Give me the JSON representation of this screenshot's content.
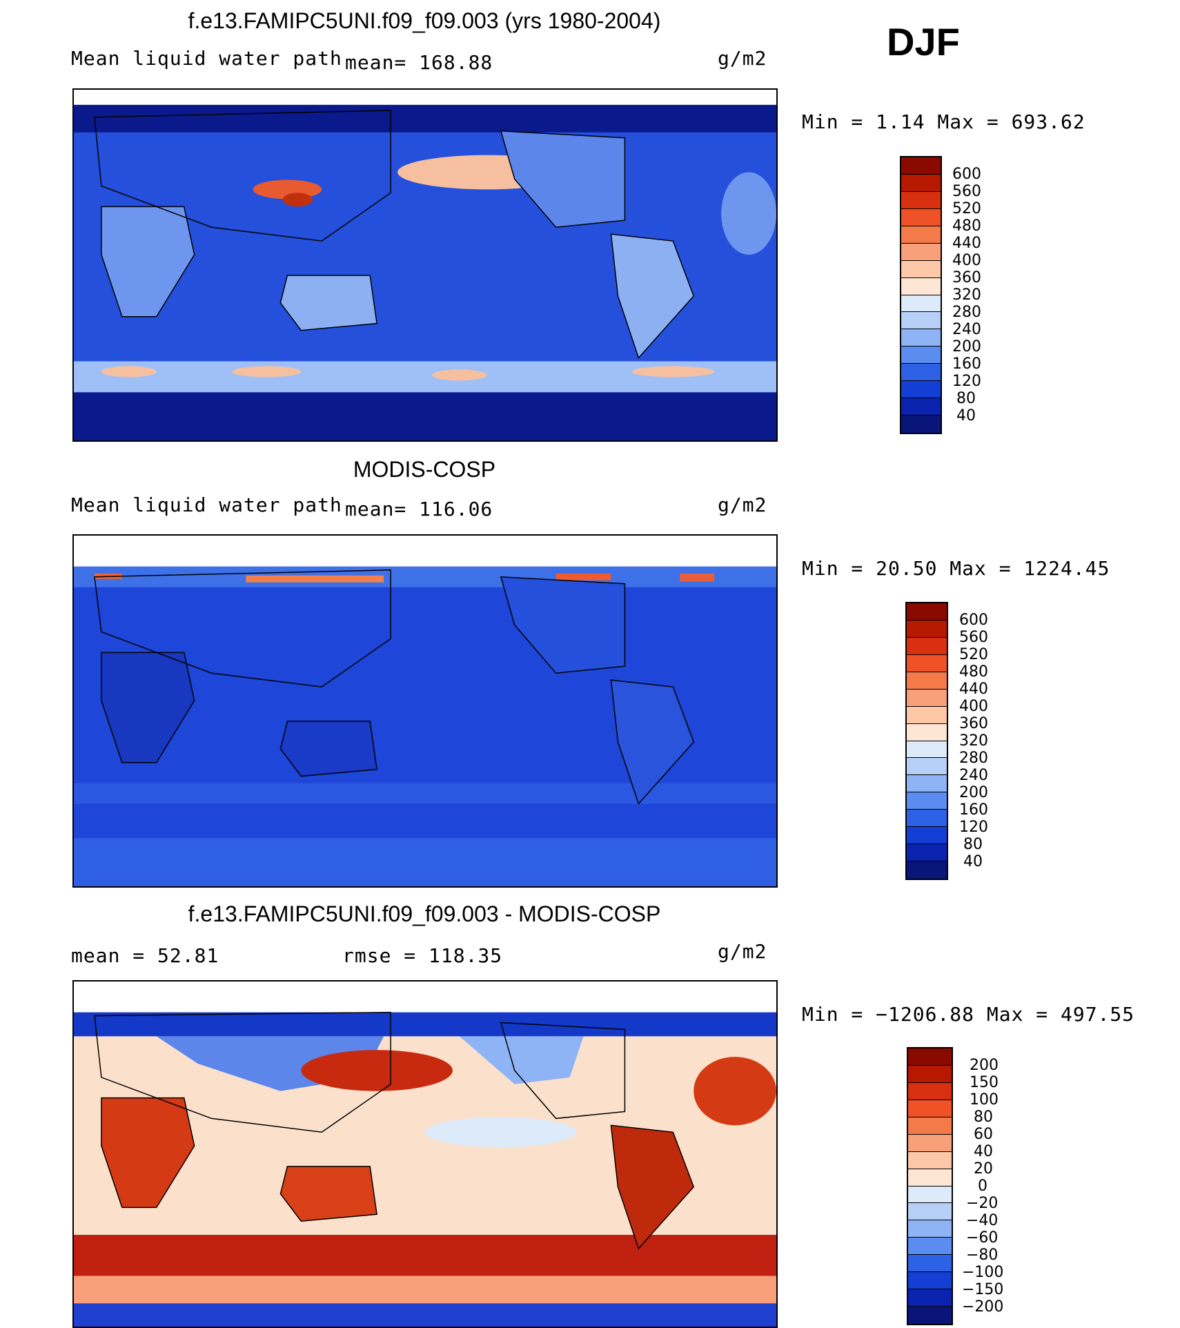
{
  "season": "DJF",
  "panels": [
    {
      "id": "model",
      "title": "f.e13.FAMIPC5UNI.f09_f09.003 (yrs 1980-2004)",
      "left_label": "Mean liquid water path",
      "mid_label": "mean= 168.88",
      "units": "g/m2",
      "minmax": "Min =    1.14 Max = 693.62",
      "colorbar": {
        "labels": [
          "600",
          "560",
          "520",
          "480",
          "440",
          "400",
          "360",
          "320",
          "280",
          "240",
          "200",
          "160",
          "120",
          "80",
          "40"
        ],
        "colors": [
          "#8b0a00",
          "#b71800",
          "#d83010",
          "#f05228",
          "#f57a4a",
          "#f8a07a",
          "#fcc8a8",
          "#fde6d4",
          "#dceafa",
          "#b6d0f8",
          "#8eb4f6",
          "#5b8cf0",
          "#2e62e6",
          "#143fd4",
          "#0a24b0",
          "#0a157a"
        ]
      }
    },
    {
      "id": "obs",
      "title": "MODIS-COSP",
      "left_label": "Mean liquid water path",
      "mid_label": "mean= 116.06",
      "units": "g/m2",
      "minmax": "Min =  20.50 Max = 1224.45",
      "colorbar": {
        "labels": [
          "600",
          "560",
          "520",
          "480",
          "440",
          "400",
          "360",
          "320",
          "280",
          "240",
          "200",
          "160",
          "120",
          "80",
          "40"
        ],
        "colors": [
          "#8b0a00",
          "#b71800",
          "#d83010",
          "#f05228",
          "#f57a4a",
          "#f8a07a",
          "#fcc8a8",
          "#fde6d4",
          "#dceafa",
          "#b6d0f8",
          "#8eb4f6",
          "#5b8cf0",
          "#2e62e6",
          "#143fd4",
          "#0a24b0",
          "#0a157a"
        ]
      }
    },
    {
      "id": "diff",
      "title": "f.e13.FAMIPC5UNI.f09_f09.003 - MODIS-COSP",
      "left_label": "mean =   52.81",
      "mid_label": "rmse = 118.35",
      "units": "g/m2",
      "minmax": "Min = −1206.88 Max = 497.55",
      "colorbar": {
        "labels": [
          "200",
          "150",
          "100",
          "80",
          "60",
          "40",
          "20",
          "0",
          "−20",
          "−40",
          "−60",
          "−80",
          "−100",
          "−150",
          "−200"
        ],
        "colors": [
          "#8b0a00",
          "#b71800",
          "#d83010",
          "#f05228",
          "#f57a4a",
          "#f8a07a",
          "#fcc8a8",
          "#fde6d4",
          "#dceafa",
          "#b6d0f8",
          "#8eb4f6",
          "#5b8cf0",
          "#2e62e6",
          "#143fd4",
          "#0a24b0",
          "#0a157a"
        ]
      }
    }
  ],
  "map_palettes": {
    "model": {
      "ocean": "#2450dc",
      "land": "#6f96ee",
      "polar": "#0a1a8c",
      "band": "#dce8fa",
      "hot": "#f08060",
      "arctic_cap": "#ffffff"
    },
    "obs": {
      "ocean": "#1e46d8",
      "land": "#3060e0",
      "polar": "#2e5ee6",
      "band": "#4a78ec",
      "hot": "#f05a30",
      "arctic_cap": "#ffffff"
    },
    "diff": {
      "ocean": "#fbe0cc",
      "land": "#d43a14",
      "polar": "#1438c8",
      "band": "#c02010",
      "hot": "#9a1000",
      "arctic_cap": "#ffffff"
    }
  }
}
